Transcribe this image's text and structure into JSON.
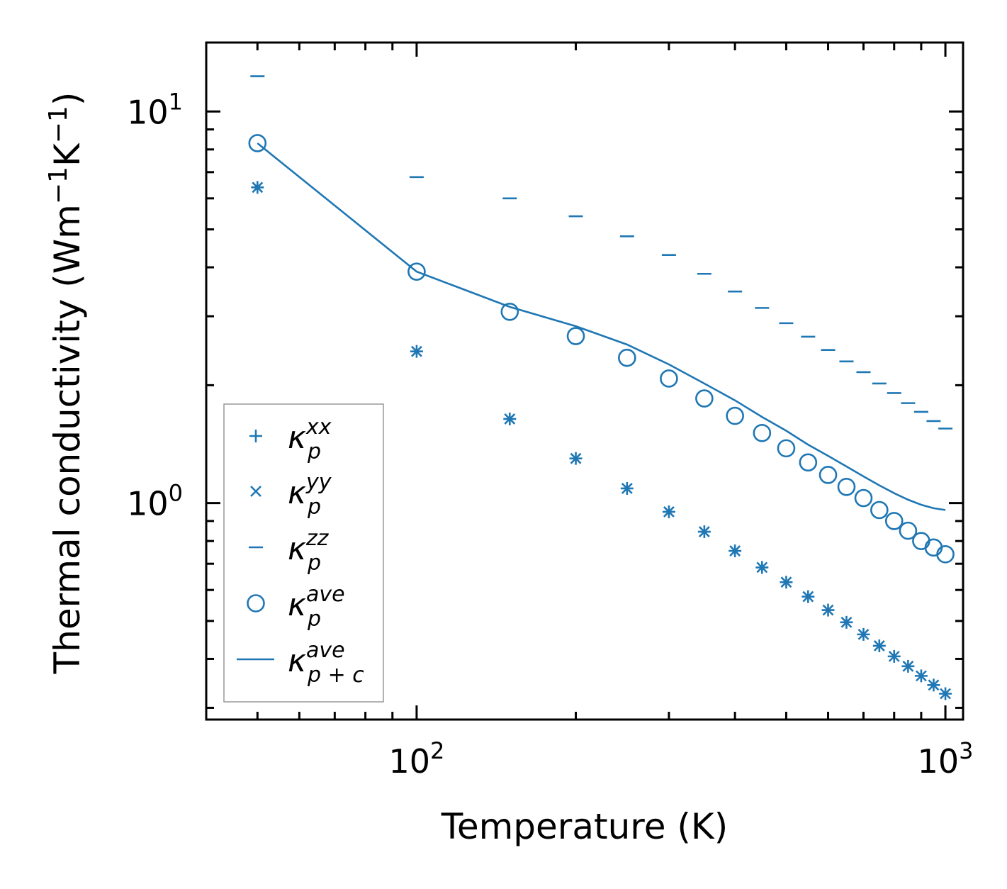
{
  "chart_data": {
    "type": "scatter",
    "title": "",
    "xlabel": "Temperature (K)",
    "ylabel_main": "Thermal conductivity (Wm",
    "ylabel_sup1": "−1",
    "ylabel_mid": "K",
    "ylabel_sup2": "−1",
    "ylabel_close": ")",
    "xscale": "log",
    "yscale": "log",
    "xlim": [
      40,
      1080
    ],
    "ylim": [
      0.28,
      15
    ],
    "x_ticks": [
      {
        "value": 100,
        "base": "10",
        "exp": "2"
      },
      {
        "value": 1000,
        "base": "10",
        "exp": "3"
      }
    ],
    "y_ticks": [
      {
        "value": 1,
        "base": "10",
        "exp": "0"
      },
      {
        "value": 10,
        "base": "10",
        "exp": "1"
      }
    ],
    "color": "#1f77b4",
    "x": [
      50,
      100,
      150,
      200,
      250,
      300,
      350,
      400,
      450,
      500,
      550,
      600,
      650,
      700,
      750,
      800,
      850,
      900,
      950,
      1000
    ],
    "series": [
      {
        "name": "kappa_p_xx",
        "marker": "plus",
        "legend_base": "κ",
        "legend_sub": "p",
        "legend_sup": "xx",
        "values": [
          6.4,
          2.44,
          1.64,
          1.3,
          1.09,
          0.95,
          0.845,
          0.755,
          0.685,
          0.628,
          0.577,
          0.533,
          0.496,
          0.462,
          0.432,
          0.406,
          0.383,
          0.362,
          0.343,
          0.326
        ]
      },
      {
        "name": "kappa_p_yy",
        "marker": "x",
        "legend_base": "κ",
        "legend_sub": "p",
        "legend_sup": "yy",
        "values": [
          6.4,
          2.44,
          1.64,
          1.3,
          1.09,
          0.95,
          0.845,
          0.755,
          0.685,
          0.628,
          0.577,
          0.533,
          0.496,
          0.462,
          0.432,
          0.406,
          0.383,
          0.362,
          0.343,
          0.326
        ]
      },
      {
        "name": "kappa_p_zz",
        "marker": "hline",
        "legend_base": "κ",
        "legend_sub": "p",
        "legend_sup": "zz",
        "values": [
          12.3,
          6.8,
          6.0,
          5.4,
          4.8,
          4.3,
          3.85,
          3.47,
          3.15,
          2.88,
          2.66,
          2.46,
          2.3,
          2.16,
          2.02,
          1.91,
          1.8,
          1.71,
          1.62,
          1.55
        ]
      },
      {
        "name": "kappa_p_ave",
        "marker": "circle",
        "legend_base": "κ",
        "legend_sub": "p",
        "legend_sup": "ave",
        "values": [
          8.3,
          3.9,
          3.08,
          2.67,
          2.35,
          2.08,
          1.85,
          1.67,
          1.51,
          1.38,
          1.27,
          1.18,
          1.1,
          1.03,
          0.96,
          0.9,
          0.85,
          0.8,
          0.77,
          0.74
        ]
      },
      {
        "name": "kappa_p_plus_c_ave",
        "marker": "line",
        "legend_base": "κ",
        "legend_sub": "p + c",
        "legend_sup": "ave",
        "x": [
          50,
          100,
          150,
          200,
          250,
          300,
          350,
          400,
          450,
          500,
          550,
          600,
          650,
          700,
          750,
          800,
          850,
          900,
          950,
          1000
        ],
        "values": [
          8.3,
          3.9,
          3.17,
          2.83,
          2.54,
          2.26,
          2.02,
          1.83,
          1.66,
          1.53,
          1.41,
          1.32,
          1.24,
          1.17,
          1.11,
          1.06,
          1.02,
          0.99,
          0.97,
          0.96
        ]
      }
    ],
    "legend": {
      "position": "lower-left",
      "frame": true
    }
  }
}
